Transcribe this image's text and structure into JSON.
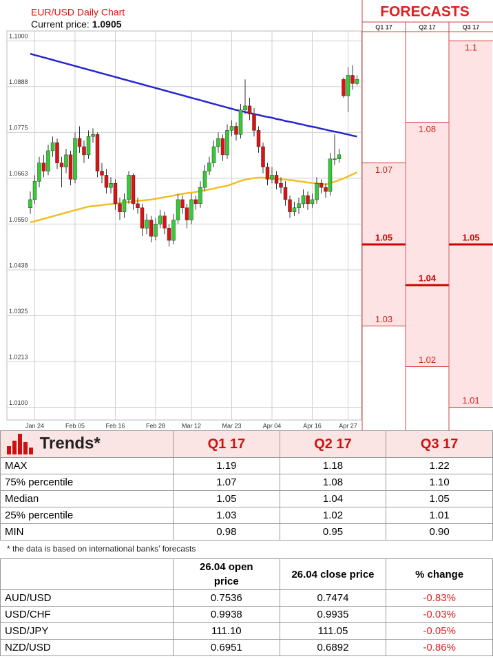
{
  "chart_data": {
    "type": "candlestick",
    "title": "EUR/USD Daily Chart",
    "current_price_label": "Current price:",
    "current_price": "1.0905",
    "categories": [
      null,
      "Jan 24",
      null,
      null,
      null,
      null,
      null,
      null,
      null,
      null,
      "Feb 05",
      null,
      null,
      null,
      null,
      null,
      null,
      null,
      null,
      "Feb 16",
      null,
      null,
      null,
      null,
      null,
      null,
      null,
      null,
      "Feb 28",
      null,
      null,
      null,
      null,
      null,
      null,
      null,
      "Mar 12",
      null,
      null,
      null,
      null,
      null,
      null,
      null,
      null,
      "Mar 23",
      null,
      null,
      null,
      null,
      null,
      null,
      null,
      null,
      "Apr 04",
      null,
      null,
      null,
      null,
      null,
      null,
      null,
      null,
      "Apr 16",
      null,
      null,
      null,
      null,
      null,
      null,
      null,
      "Apr 27",
      null,
      null
    ],
    "open": [
      1.059,
      1.061,
      1.0655,
      1.07,
      1.068,
      1.073,
      1.075,
      1.07,
      1.069,
      1.072,
      1.066,
      1.076,
      1.074,
      1.072,
      1.0765,
      1.077,
      1.068,
      1.067,
      1.064,
      1.065,
      1.06,
      1.058,
      1.061,
      1.067,
      1.06,
      1.059,
      1.054,
      1.056,
      1.052,
      1.055,
      1.057,
      1.054,
      1.051,
      1.056,
      1.061,
      1.059,
      1.056,
      1.061,
      1.06,
      1.064,
      1.068,
      1.07,
      1.074,
      1.076,
      1.072,
      1.078,
      1.079,
      1.077,
      1.083,
      1.084,
      1.082,
      1.078,
      1.074,
      1.069,
      1.066,
      1.067,
      1.065,
      1.064,
      1.061,
      1.058,
      1.059,
      1.06,
      1.062,
      1.06,
      1.061,
      1.065,
      1.064,
      1.063,
      1.071,
      1.071,
      1.0905,
      1.0865,
      1.0915,
      1.0895
    ],
    "high": [
      1.063,
      1.067,
      1.0715,
      1.072,
      1.0745,
      1.0765,
      1.076,
      1.0715,
      1.0735,
      1.073,
      1.0775,
      1.079,
      1.0755,
      1.078,
      1.0785,
      1.0775,
      1.07,
      1.0685,
      1.0665,
      1.066,
      1.0615,
      1.0625,
      1.068,
      1.0675,
      1.0615,
      1.06,
      1.0575,
      1.057,
      1.0565,
      1.0585,
      1.058,
      1.055,
      1.0575,
      1.0625,
      1.062,
      1.06,
      1.0625,
      1.062,
      1.0655,
      1.0695,
      1.0715,
      1.0755,
      1.0775,
      1.077,
      1.0795,
      1.0805,
      1.08,
      1.0845,
      1.0905,
      1.086,
      1.0835,
      1.079,
      1.075,
      1.07,
      1.069,
      1.068,
      1.0665,
      1.0655,
      1.062,
      1.0605,
      1.0615,
      1.0635,
      1.063,
      1.0625,
      1.0665,
      1.066,
      1.065,
      1.0725,
      1.077,
      1.0735,
      1.091,
      1.0935,
      1.094,
      1.0915
    ],
    "low": [
      1.0575,
      1.06,
      1.064,
      1.0665,
      1.067,
      1.0715,
      1.0685,
      1.064,
      1.0675,
      1.0645,
      1.065,
      1.0725,
      1.07,
      1.071,
      1.075,
      1.0665,
      1.065,
      1.0625,
      1.0625,
      1.0585,
      1.056,
      1.0565,
      1.06,
      1.0585,
      1.0575,
      1.052,
      1.0525,
      1.0505,
      1.051,
      1.054,
      1.0525,
      1.0495,
      1.05,
      1.055,
      1.0575,
      1.054,
      1.055,
      1.0585,
      1.059,
      1.063,
      1.067,
      1.069,
      1.0725,
      1.0705,
      1.071,
      1.0765,
      1.0755,
      1.076,
      1.082,
      1.0805,
      1.0765,
      1.0725,
      1.0675,
      1.0645,
      1.065,
      1.0635,
      1.0625,
      1.0595,
      1.0565,
      1.057,
      1.0575,
      1.059,
      1.0585,
      1.059,
      1.06,
      1.0625,
      1.0615,
      1.062,
      1.0695,
      1.07,
      1.086,
      1.0825,
      1.088,
      1.089
    ],
    "close": [
      1.061,
      1.0655,
      1.07,
      1.068,
      1.073,
      1.075,
      1.07,
      1.069,
      1.072,
      1.066,
      1.076,
      1.074,
      1.072,
      1.0765,
      1.077,
      1.068,
      1.067,
      1.064,
      1.065,
      1.06,
      1.058,
      1.061,
      1.067,
      1.06,
      1.059,
      1.054,
      1.056,
      1.052,
      1.055,
      1.057,
      1.054,
      1.051,
      1.056,
      1.061,
      1.059,
      1.056,
      1.061,
      1.06,
      1.064,
      1.068,
      1.07,
      1.074,
      1.076,
      1.072,
      1.078,
      1.079,
      1.077,
      1.083,
      1.084,
      1.082,
      1.078,
      1.074,
      1.069,
      1.066,
      1.067,
      1.065,
      1.064,
      1.061,
      1.058,
      1.059,
      1.06,
      1.062,
      1.06,
      1.061,
      1.065,
      1.064,
      1.063,
      1.071,
      1.071,
      1.072,
      1.0865,
      1.0915,
      1.0895,
      1.0905
    ],
    "up_color": "#33cc33",
    "down_color": "#dd1111",
    "lines": [
      {
        "color": "#2525d0",
        "values": [
          1.0968,
          1.0965,
          1.0962,
          1.0959,
          1.0956,
          1.0953,
          1.095,
          1.0947,
          1.0944,
          1.0941,
          1.0938,
          1.0935,
          1.0932,
          1.0929,
          1.0926,
          1.0923,
          1.092,
          1.0917,
          1.0914,
          1.0911,
          1.0908,
          1.0905,
          1.0902,
          1.0899,
          1.0896,
          1.0893,
          1.089,
          1.0887,
          1.0884,
          1.0881,
          1.0878,
          1.0875,
          1.0872,
          1.0869,
          1.0866,
          1.0863,
          1.086,
          1.0857,
          1.0854,
          1.0851,
          1.0848,
          1.0845,
          1.0842,
          1.0839,
          1.0836,
          1.0833,
          1.083,
          1.0828,
          1.0825,
          1.0823,
          1.082,
          1.0818,
          1.0815,
          1.0813,
          1.0811,
          1.0808,
          1.0806,
          1.0803,
          1.0801,
          1.0799,
          1.0796,
          1.0794,
          1.0791,
          1.0789,
          1.0787,
          1.0784,
          1.0782,
          1.0779,
          1.0777,
          1.0775,
          1.0772,
          1.077,
          1.0767,
          1.0765
        ]
      },
      {
        "color": "#f2bd22",
        "values": [
          1.0554,
          1.0557,
          1.056,
          1.0563,
          1.0566,
          1.0569,
          1.0572,
          1.0575,
          1.0578,
          1.0581,
          1.0584,
          1.0587,
          1.059,
          1.0593,
          1.0594,
          1.0595,
          1.0597,
          1.0598,
          1.0599,
          1.06,
          1.0602,
          1.0603,
          1.0604,
          1.0605,
          1.0607,
          1.0608,
          1.0609,
          1.061,
          1.0612,
          1.0614,
          1.0616,
          1.0618,
          1.062,
          1.0622,
          1.0624,
          1.0626,
          1.0627,
          1.0629,
          1.0631,
          1.0633,
          1.0635,
          1.0637,
          1.064,
          1.0642,
          1.0644,
          1.0648,
          1.0652,
          1.0656,
          1.0659,
          1.0661,
          1.0663,
          1.0664,
          1.0664,
          1.0663,
          1.0662,
          1.0661,
          1.066,
          1.0659,
          1.0658,
          1.0657,
          1.0655,
          1.0654,
          1.0652,
          1.0651,
          1.065,
          1.0649,
          1.0647,
          1.065,
          1.0654,
          1.0658,
          1.0662,
          1.0667,
          1.0672,
          1.0677
        ]
      }
    ],
    "ylim": [
      1.0069,
      1.1024
    ],
    "yticks": [
      {
        "value": 1.1,
        "label": "1.1000"
      },
      {
        "value": 1.08875,
        "label": "1.0888"
      },
      {
        "value": 1.0775,
        "label": "1.0775"
      },
      {
        "value": 1.06625,
        "label": "1.0663"
      },
      {
        "value": 1.055,
        "label": "1.0550"
      },
      {
        "value": 1.04375,
        "label": "1.0438"
      },
      {
        "value": 1.0325,
        "label": "1.0325"
      },
      {
        "value": 1.02125,
        "label": "1.0213"
      },
      {
        "value": 1.01,
        "label": "1.0100"
      }
    ],
    "grid": true
  },
  "forecasts": {
    "title": "FORECASTS",
    "columns": [
      {
        "label": "Q1 17",
        "high": 1.07,
        "median": 1.05,
        "low": 1.03
      },
      {
        "label": "Q2 17",
        "high": 1.08,
        "median": 1.04,
        "low": 1.02
      },
      {
        "label": "Q3 17",
        "high": 1.1,
        "median": 1.05,
        "low": 1.01
      }
    ]
  },
  "trends": {
    "title": "Trends*",
    "header": [
      "Q1 17",
      "Q2 17",
      "Q3 17"
    ],
    "rows": [
      [
        "MAX",
        "1.19",
        "1.18",
        "1.22"
      ],
      [
        "75% percentile",
        "1.07",
        "1.08",
        "1.10"
      ],
      [
        "Median",
        "1.05",
        "1.04",
        "1.05"
      ],
      [
        "25% percentile",
        "1.03",
        "1.02",
        "1.01"
      ],
      [
        "MIN",
        "0.98",
        "0.95",
        "0.90"
      ]
    ],
    "note": "* the data is based on international banks’ forecasts"
  },
  "rates": {
    "header": [
      "26.04 open price",
      "26.04 close price",
      "% change"
    ],
    "rows": [
      [
        "AUD/USD",
        "0.7536",
        "0.7474",
        "-0.83%"
      ],
      [
        "USD/CHF",
        "0.9938",
        "0.9935",
        "-0.03%"
      ],
      [
        "USD/JPY",
        "111.10",
        "111.05",
        "-0.05%"
      ],
      [
        "NZD/USD",
        "0.6951",
        "0.6892",
        "-0.86%"
      ]
    ]
  }
}
